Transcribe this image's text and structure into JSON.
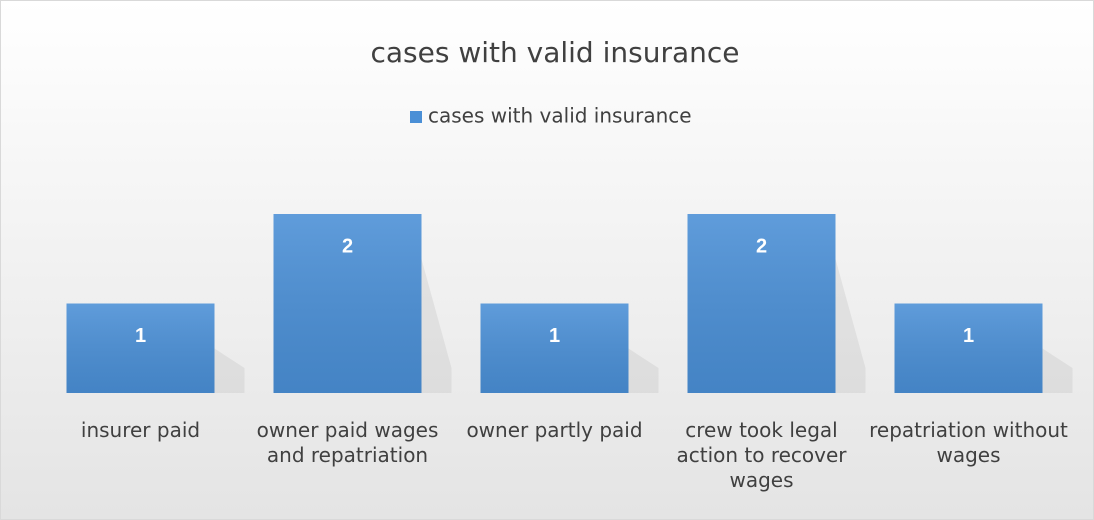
{
  "chart_data": {
    "type": "bar",
    "title": "cases with valid insurance",
    "categories": [
      "insurer paid",
      "owner paid wages and repatriation",
      "owner partly paid",
      "crew took legal action to recover wages",
      "repatriation without wages"
    ],
    "series": [
      {
        "name": "cases with valid insurance",
        "color": "#4a8fd6",
        "values": [
          1,
          2,
          1,
          2,
          1
        ]
      }
    ],
    "legend": "top"
  }
}
